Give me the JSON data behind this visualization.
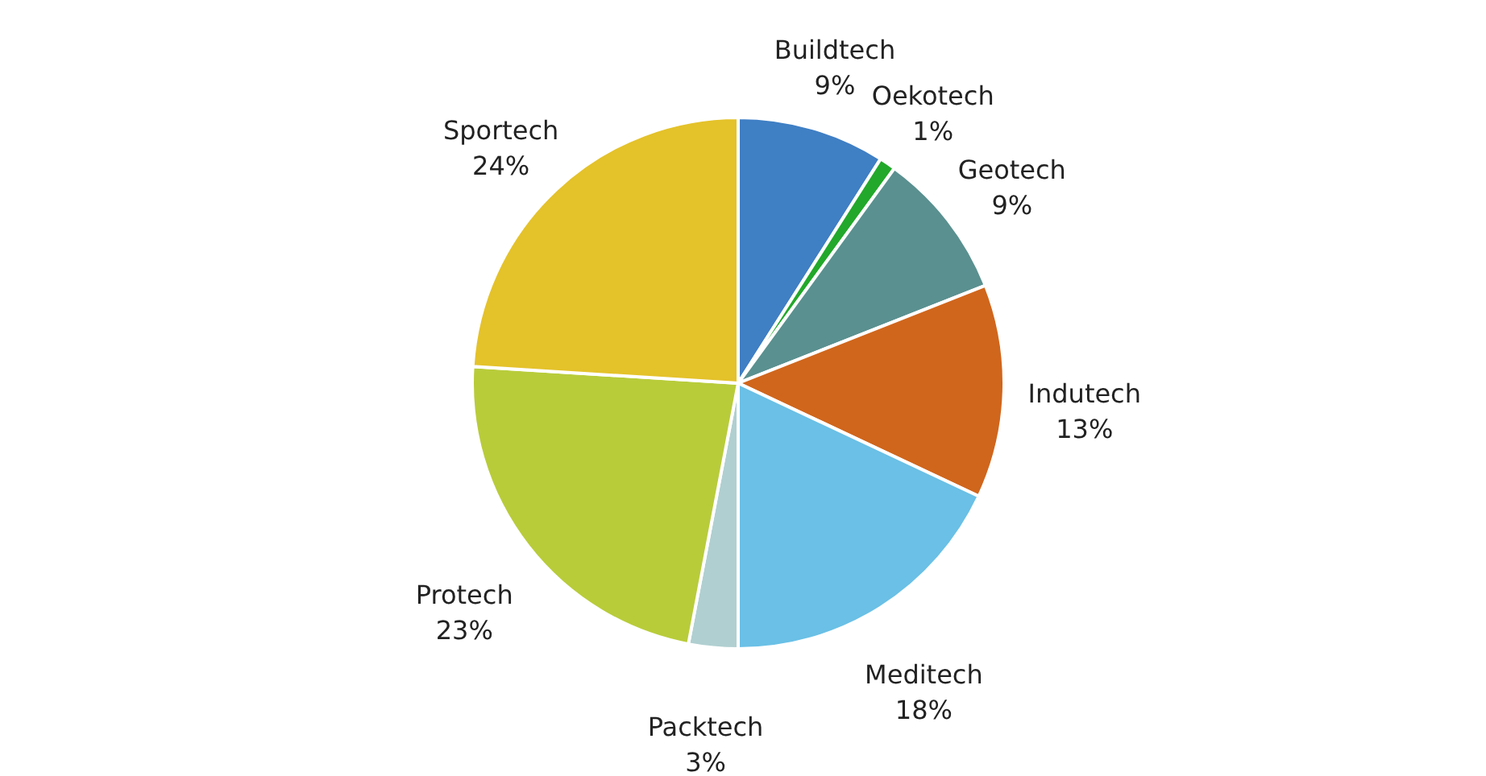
{
  "chart_data": {
    "type": "pie",
    "categories": [
      "Buildtech",
      "Oekotech",
      "Geotech",
      "Indutech",
      "Meditech",
      "Packtech",
      "Protech",
      "Sportech"
    ],
    "values": [
      9,
      1,
      9,
      13,
      18,
      3,
      23,
      24
    ],
    "value_labels": [
      "9%",
      "1%",
      "9%",
      "13%",
      "18%",
      "3%",
      "23%",
      "24%"
    ],
    "colors": [
      "#3f7fc4",
      "#22a82a",
      "#5a9090",
      "#d0661c",
      "#6ac0e6",
      "#b0cfd0",
      "#b8cc3a",
      "#e4c22a"
    ],
    "legend": false
  }
}
